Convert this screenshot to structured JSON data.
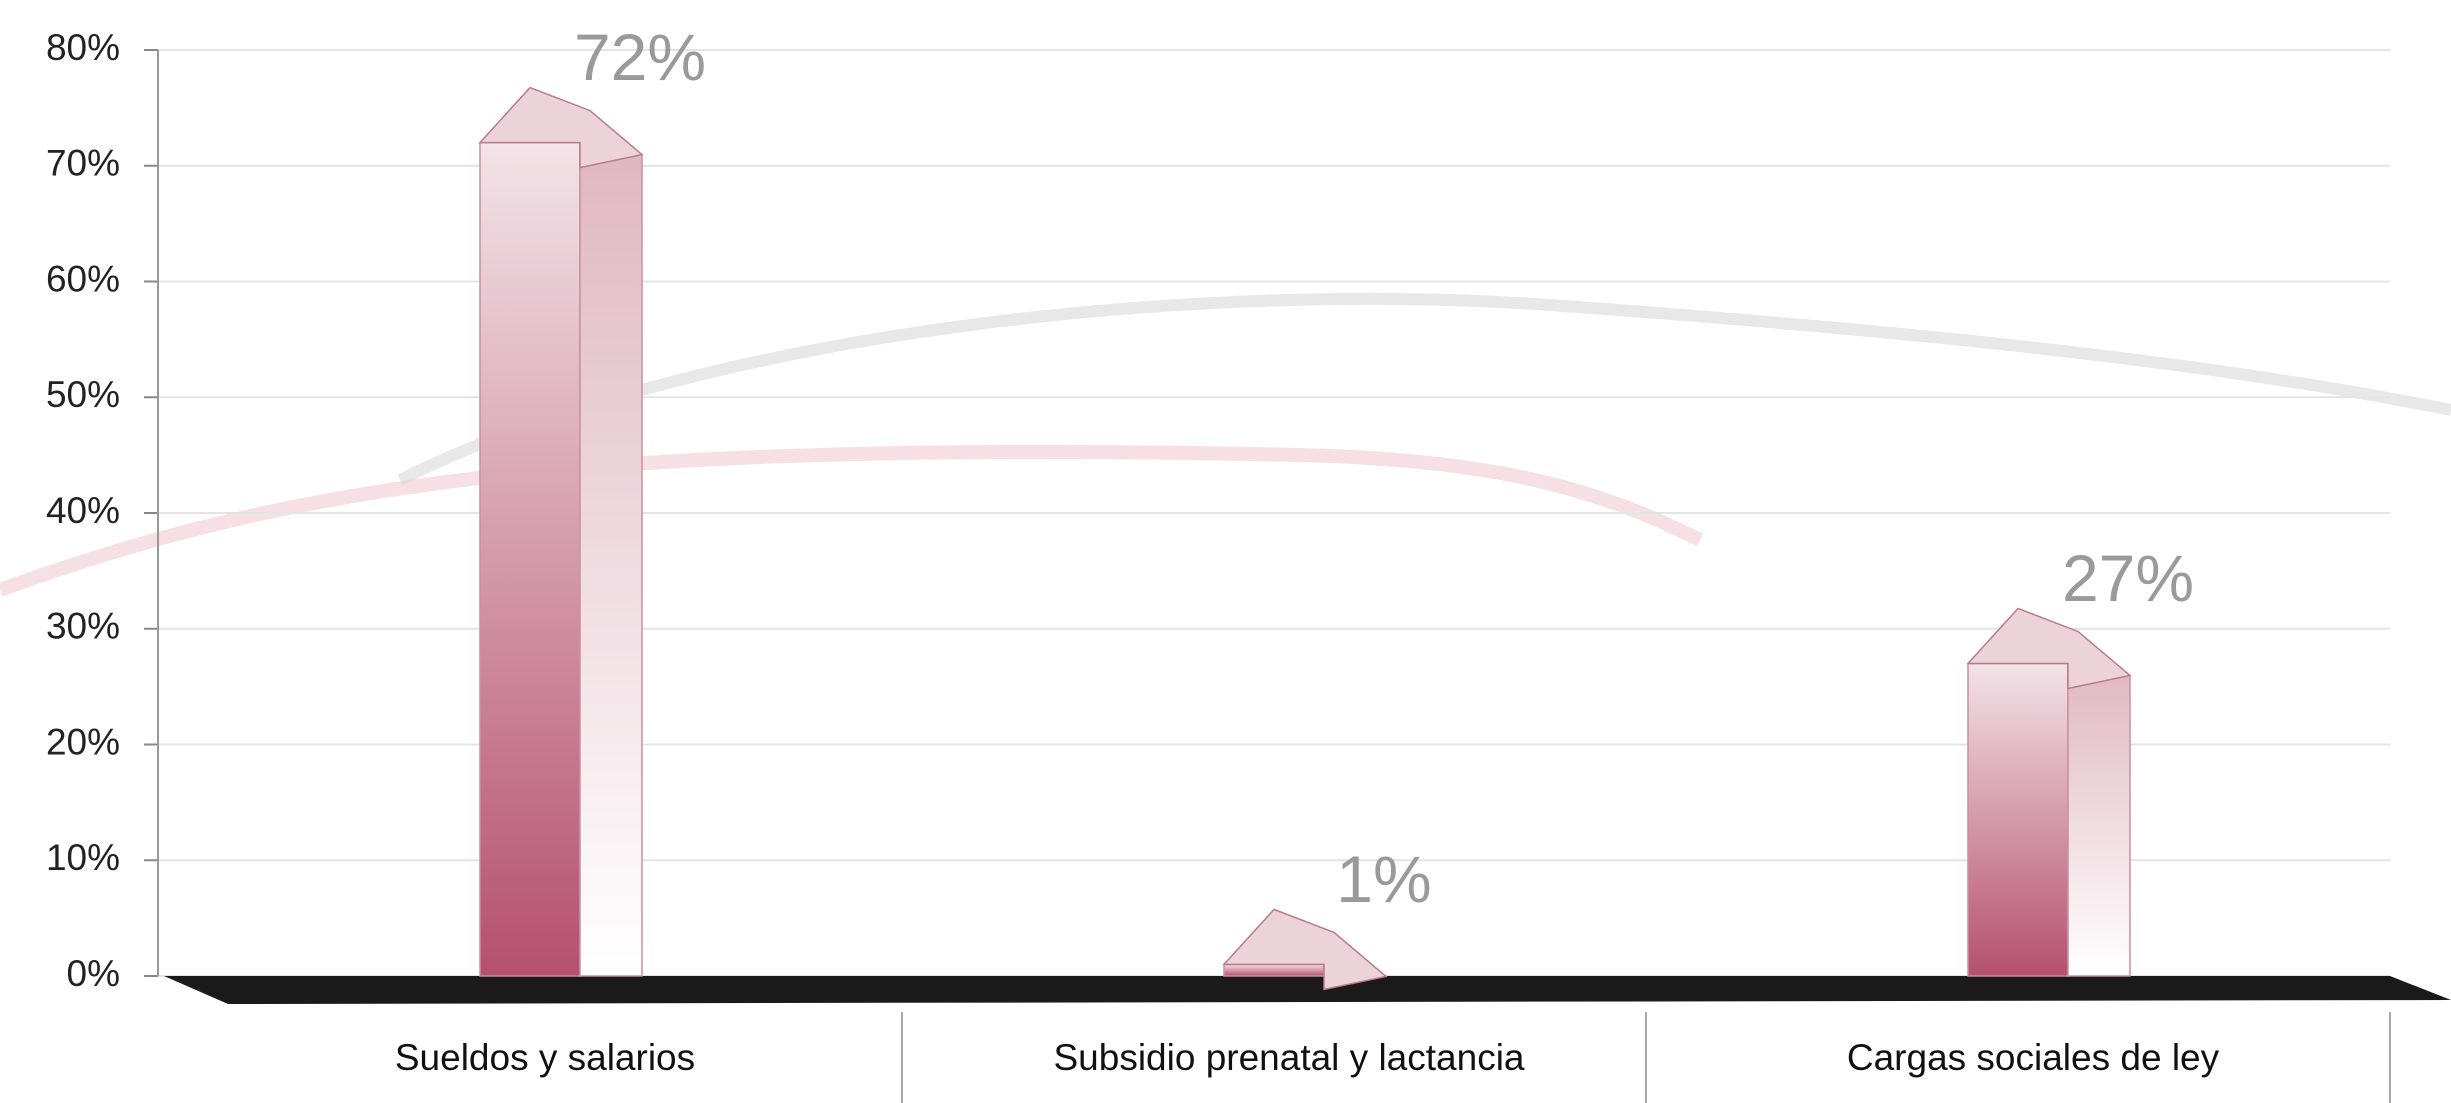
{
  "chart_data": {
    "type": "bar",
    "categories": [
      "Sueldos y salarios",
      "Subsidio prenatal y lactancia",
      "Cargas sociales de ley"
    ],
    "values": [
      72,
      1,
      27
    ],
    "value_labels": [
      "72%",
      "1%",
      "27%"
    ],
    "color": "#b5506f",
    "ylim": [
      0,
      80
    ],
    "yticks": [
      {
        "value": 0,
        "label": "0%"
      },
      {
        "value": 10,
        "label": "10%"
      },
      {
        "value": 20,
        "label": "20%"
      },
      {
        "value": 30,
        "label": "30%"
      },
      {
        "value": 40,
        "label": "40%"
      },
      {
        "value": 50,
        "label": "50%"
      },
      {
        "value": 60,
        "label": "60%"
      },
      {
        "value": 70,
        "label": "70%"
      },
      {
        "value": 80,
        "label": "80%"
      }
    ],
    "grid": true
  }
}
